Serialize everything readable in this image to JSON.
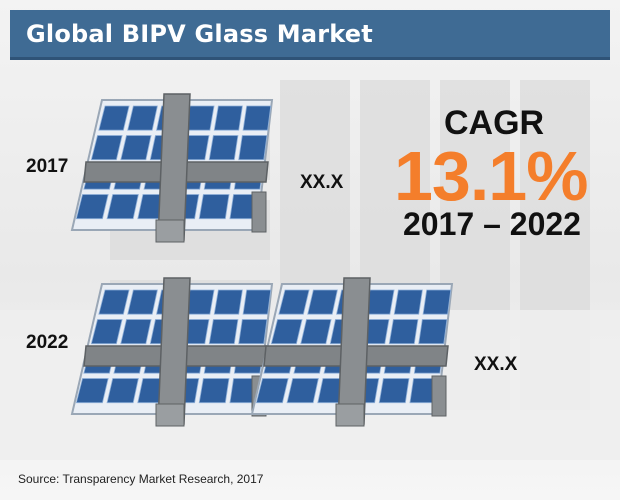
{
  "title": "Global BIPV Glass Market",
  "chart_data": {
    "type": "bar",
    "categories": [
      "2017",
      "2022"
    ],
    "value_labels": [
      "XX.X",
      "XX.X"
    ],
    "panel_counts": [
      1,
      2
    ]
  },
  "cagr": {
    "label": "CAGR",
    "value": "13.1%",
    "period": "2017 – 2022"
  },
  "source": "Source: Transparency Market Research, 2017",
  "colors": {
    "title_bar": "#3f6b94",
    "accent": "#f47e2b",
    "panel_blue": "#2f5f9e"
  },
  "icons": {
    "panel": "solar-panel-icon"
  }
}
